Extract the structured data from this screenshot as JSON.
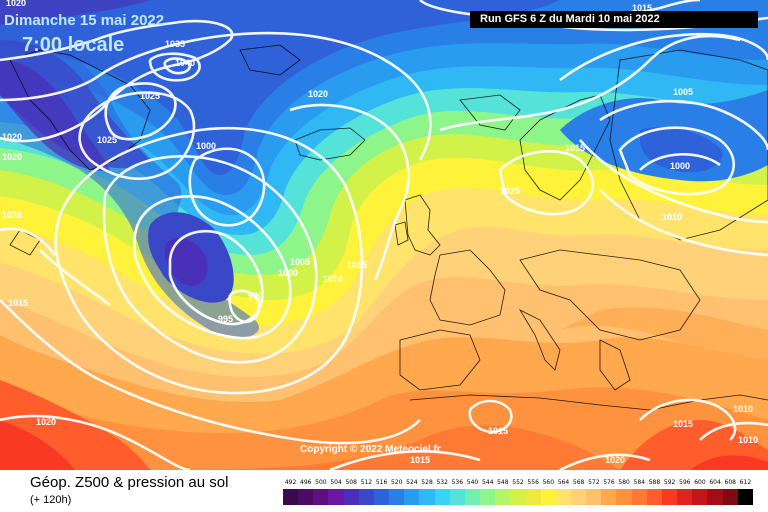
{
  "header": {
    "date": "Dimanche 15 mai 2022",
    "time": "7:00 locale",
    "run": "Run GFS 6 Z du Mardi 10 mai 2022"
  },
  "footer": {
    "title": "Géop. Z500 & pression au sol",
    "subtitle": "(+ 120h)",
    "copyright": "Copyright © 2022 Meteociel.fr"
  },
  "legend": {
    "ticks": [
      "492",
      "496",
      "500",
      "504",
      "508",
      "512",
      "516",
      "520",
      "524",
      "528",
      "532",
      "536",
      "540",
      "544",
      "548",
      "552",
      "556",
      "560",
      "564",
      "568",
      "572",
      "576",
      "580",
      "584",
      "588",
      "592",
      "596",
      "600",
      "604",
      "608",
      "612"
    ],
    "colors": [
      "#3a0a4a",
      "#4a0d63",
      "#5b1180",
      "#6a18a0",
      "#4a2fb8",
      "#3a48c8",
      "#2f62d8",
      "#2a7fe6",
      "#2a9cf0",
      "#30b8f4",
      "#3bd2f4",
      "#55e2d8",
      "#6ff0b0",
      "#8ef58a",
      "#b2f566",
      "#d2f24a",
      "#eeea3c",
      "#fff23a",
      "#ffe36a",
      "#ffd27a",
      "#ffc070",
      "#ffa84e",
      "#ff923e",
      "#ff7a34",
      "#ff5e2c",
      "#f83a24",
      "#e0241e",
      "#c2161a",
      "#a00e16",
      "#7e0a12",
      "#000000"
    ]
  },
  "pressure_labels": [
    {
      "text": "1020"
    },
    {
      "text": "1035"
    },
    {
      "text": "1040"
    },
    {
      "text": "1025"
    },
    {
      "text": "1025"
    },
    {
      "text": "1020"
    },
    {
      "text": "1020"
    },
    {
      "text": "1020"
    },
    {
      "text": "1000"
    },
    {
      "text": "1020"
    },
    {
      "text": "1015"
    },
    {
      "text": "1005"
    },
    {
      "text": "1000"
    },
    {
      "text": "1010"
    },
    {
      "text": "1015"
    },
    {
      "text": "990"
    },
    {
      "text": "995"
    },
    {
      "text": "1020"
    },
    {
      "text": "1015"
    },
    {
      "text": "1015"
    },
    {
      "text": "1020"
    },
    {
      "text": "1015"
    },
    {
      "text": "1025"
    },
    {
      "text": "1005"
    },
    {
      "text": "1000"
    },
    {
      "text": "1010"
    },
    {
      "text": "1015"
    },
    {
      "text": "1010"
    },
    {
      "text": "1010"
    },
    {
      "text": "1015"
    }
  ]
}
